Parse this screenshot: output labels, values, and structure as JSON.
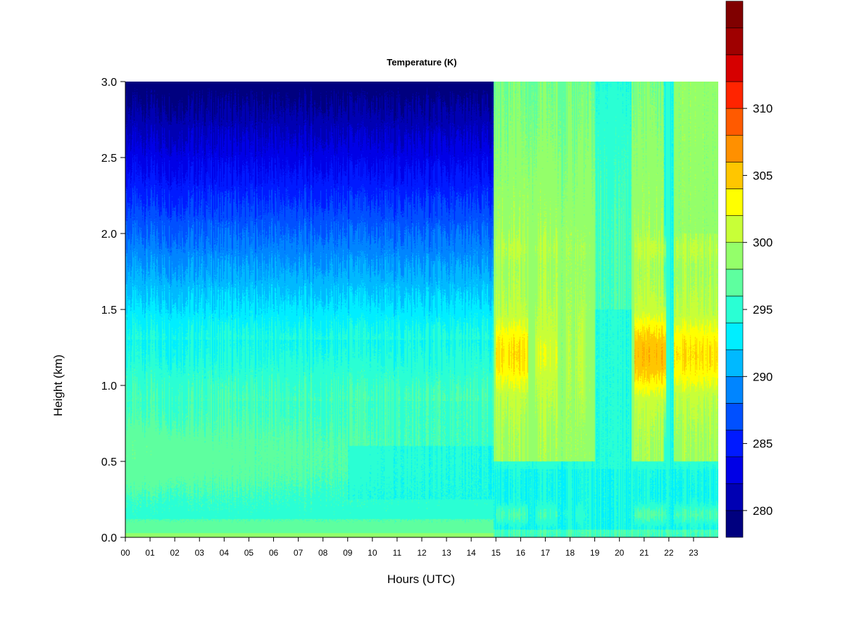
{
  "chart_data": {
    "type": "heatmap",
    "title": "Temperature (K)",
    "xlabel": "Hours (UTC)",
    "ylabel": "Height (km)",
    "xlim": [
      0,
      24
    ],
    "ylim": [
      0.0,
      3.0
    ],
    "x_ticks": [
      "00",
      "01",
      "02",
      "03",
      "04",
      "05",
      "06",
      "07",
      "08",
      "09",
      "10",
      "11",
      "12",
      "13",
      "14",
      "15",
      "16",
      "17",
      "18",
      "19",
      "20",
      "21",
      "22",
      "23"
    ],
    "y_ticks": [
      "0.0",
      "0.5",
      "1.0",
      "1.5",
      "2.0",
      "2.5",
      "3.0"
    ],
    "colorbar": {
      "label": "Temperature (K)",
      "range": [
        278,
        312
      ],
      "level_step": 2,
      "ticks": [
        "280",
        "285",
        "290",
        "295",
        "300",
        "305",
        "310"
      ],
      "colors": [
        "#00007f",
        "#0000b3",
        "#0000e6",
        "#001aff",
        "#0050ff",
        "#0085ff",
        "#00b9ff",
        "#00eeff",
        "#2affd4",
        "#5eff9f",
        "#94ff6a",
        "#c8ff37",
        "#ffff00",
        "#ffc600",
        "#ff9000",
        "#ff5a00",
        "#ff2400",
        "#d60000",
        "#9f0000",
        "#800000"
      ]
    },
    "description_points": [
      {
        "period_h": [
          0,
          15
        ],
        "surface_0km": 299,
        "at_0_5km": 296,
        "at_1_0km": 295,
        "at_1_5km": 292,
        "at_2_0km": 289,
        "at_2_5km": 285,
        "at_3_0km": 281
      },
      {
        "period_h": [
          15,
          24
        ],
        "surface_0km": 298,
        "at_0_5km": 295,
        "at_1_2km_peak": 307,
        "at_1_9km": 302,
        "at_2_5km": 299,
        "at_3_0km": 298
      }
    ],
    "grid": false,
    "legend": "colorbar-right"
  }
}
